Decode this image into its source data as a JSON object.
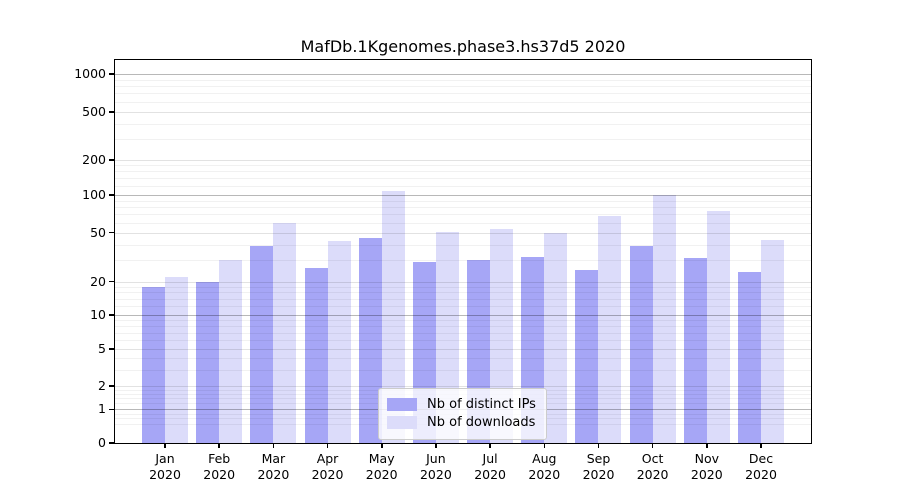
{
  "title": "MafDb.1Kgenomes.phase3.hs37d5 2020",
  "chart_data": {
    "type": "bar",
    "title": "MafDb.1Kgenomes.phase3.hs37d5 2020",
    "scale": "symlog",
    "grid": "both",
    "legend_position": "lower center",
    "categories": [
      "Jan",
      "Feb",
      "Mar",
      "Apr",
      "May",
      "Jun",
      "Jul",
      "Aug",
      "Sep",
      "Oct",
      "Nov",
      "Dec"
    ],
    "year_label": "2020",
    "series": [
      {
        "name": "Nb of distinct IPs",
        "color": "#a6a6f6",
        "values": [
          18,
          20,
          39,
          26,
          45,
          29,
          30,
          32,
          25,
          39,
          31,
          24
        ]
      },
      {
        "name": "Nb of downloads",
        "color": "#dcdcfa",
        "values": [
          22,
          30,
          60,
          43,
          108,
          51,
          54,
          50,
          68,
          100,
          75,
          44
        ]
      }
    ],
    "yticks": [
      0,
      1,
      2,
      5,
      10,
      20,
      50,
      100,
      200,
      500,
      1000
    ],
    "ytick_labels": [
      "0",
      "1",
      "2",
      "5",
      "10",
      "20",
      "50",
      "100",
      "200",
      "500",
      "1000"
    ],
    "ylim": [
      0,
      1200
    ],
    "xlabel": "",
    "ylabel": ""
  }
}
